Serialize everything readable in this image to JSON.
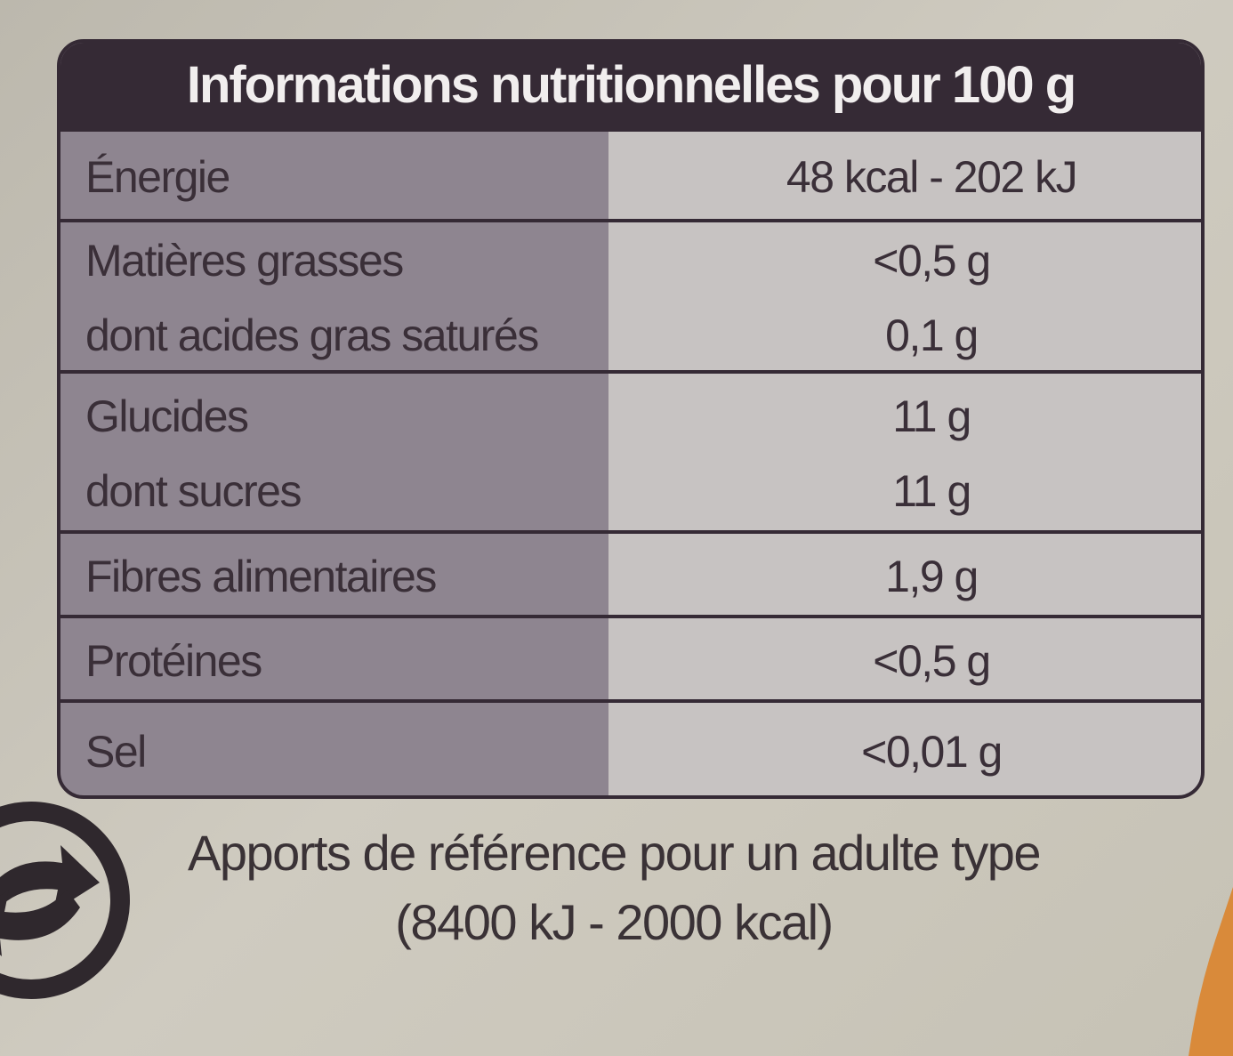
{
  "header": {
    "title": "Informations nutritionnelles pour 100 g"
  },
  "table": {
    "rows": [
      [
        {
          "label": "Énergie",
          "value": "48 kcal - 202 kJ"
        }
      ],
      [
        {
          "label": "Matières grasses",
          "value": "<0,5 g"
        },
        {
          "label": "dont acides gras saturés",
          "value": "0,1 g"
        }
      ],
      [
        {
          "label": "Glucides",
          "value": "11 g"
        },
        {
          "label": "dont sucres",
          "value": "11 g"
        }
      ],
      [
        {
          "label": "Fibres alimentaires",
          "value": "1,9 g"
        }
      ],
      [
        {
          "label": "Protéines",
          "value": "<0,5 g"
        }
      ],
      [
        {
          "label": "Sel",
          "value": "<0,01 g"
        }
      ]
    ]
  },
  "footer": {
    "lines": [
      "Apports de référence pour un adulte type",
      "(8400 kJ - 2000 kcal)"
    ]
  }
}
